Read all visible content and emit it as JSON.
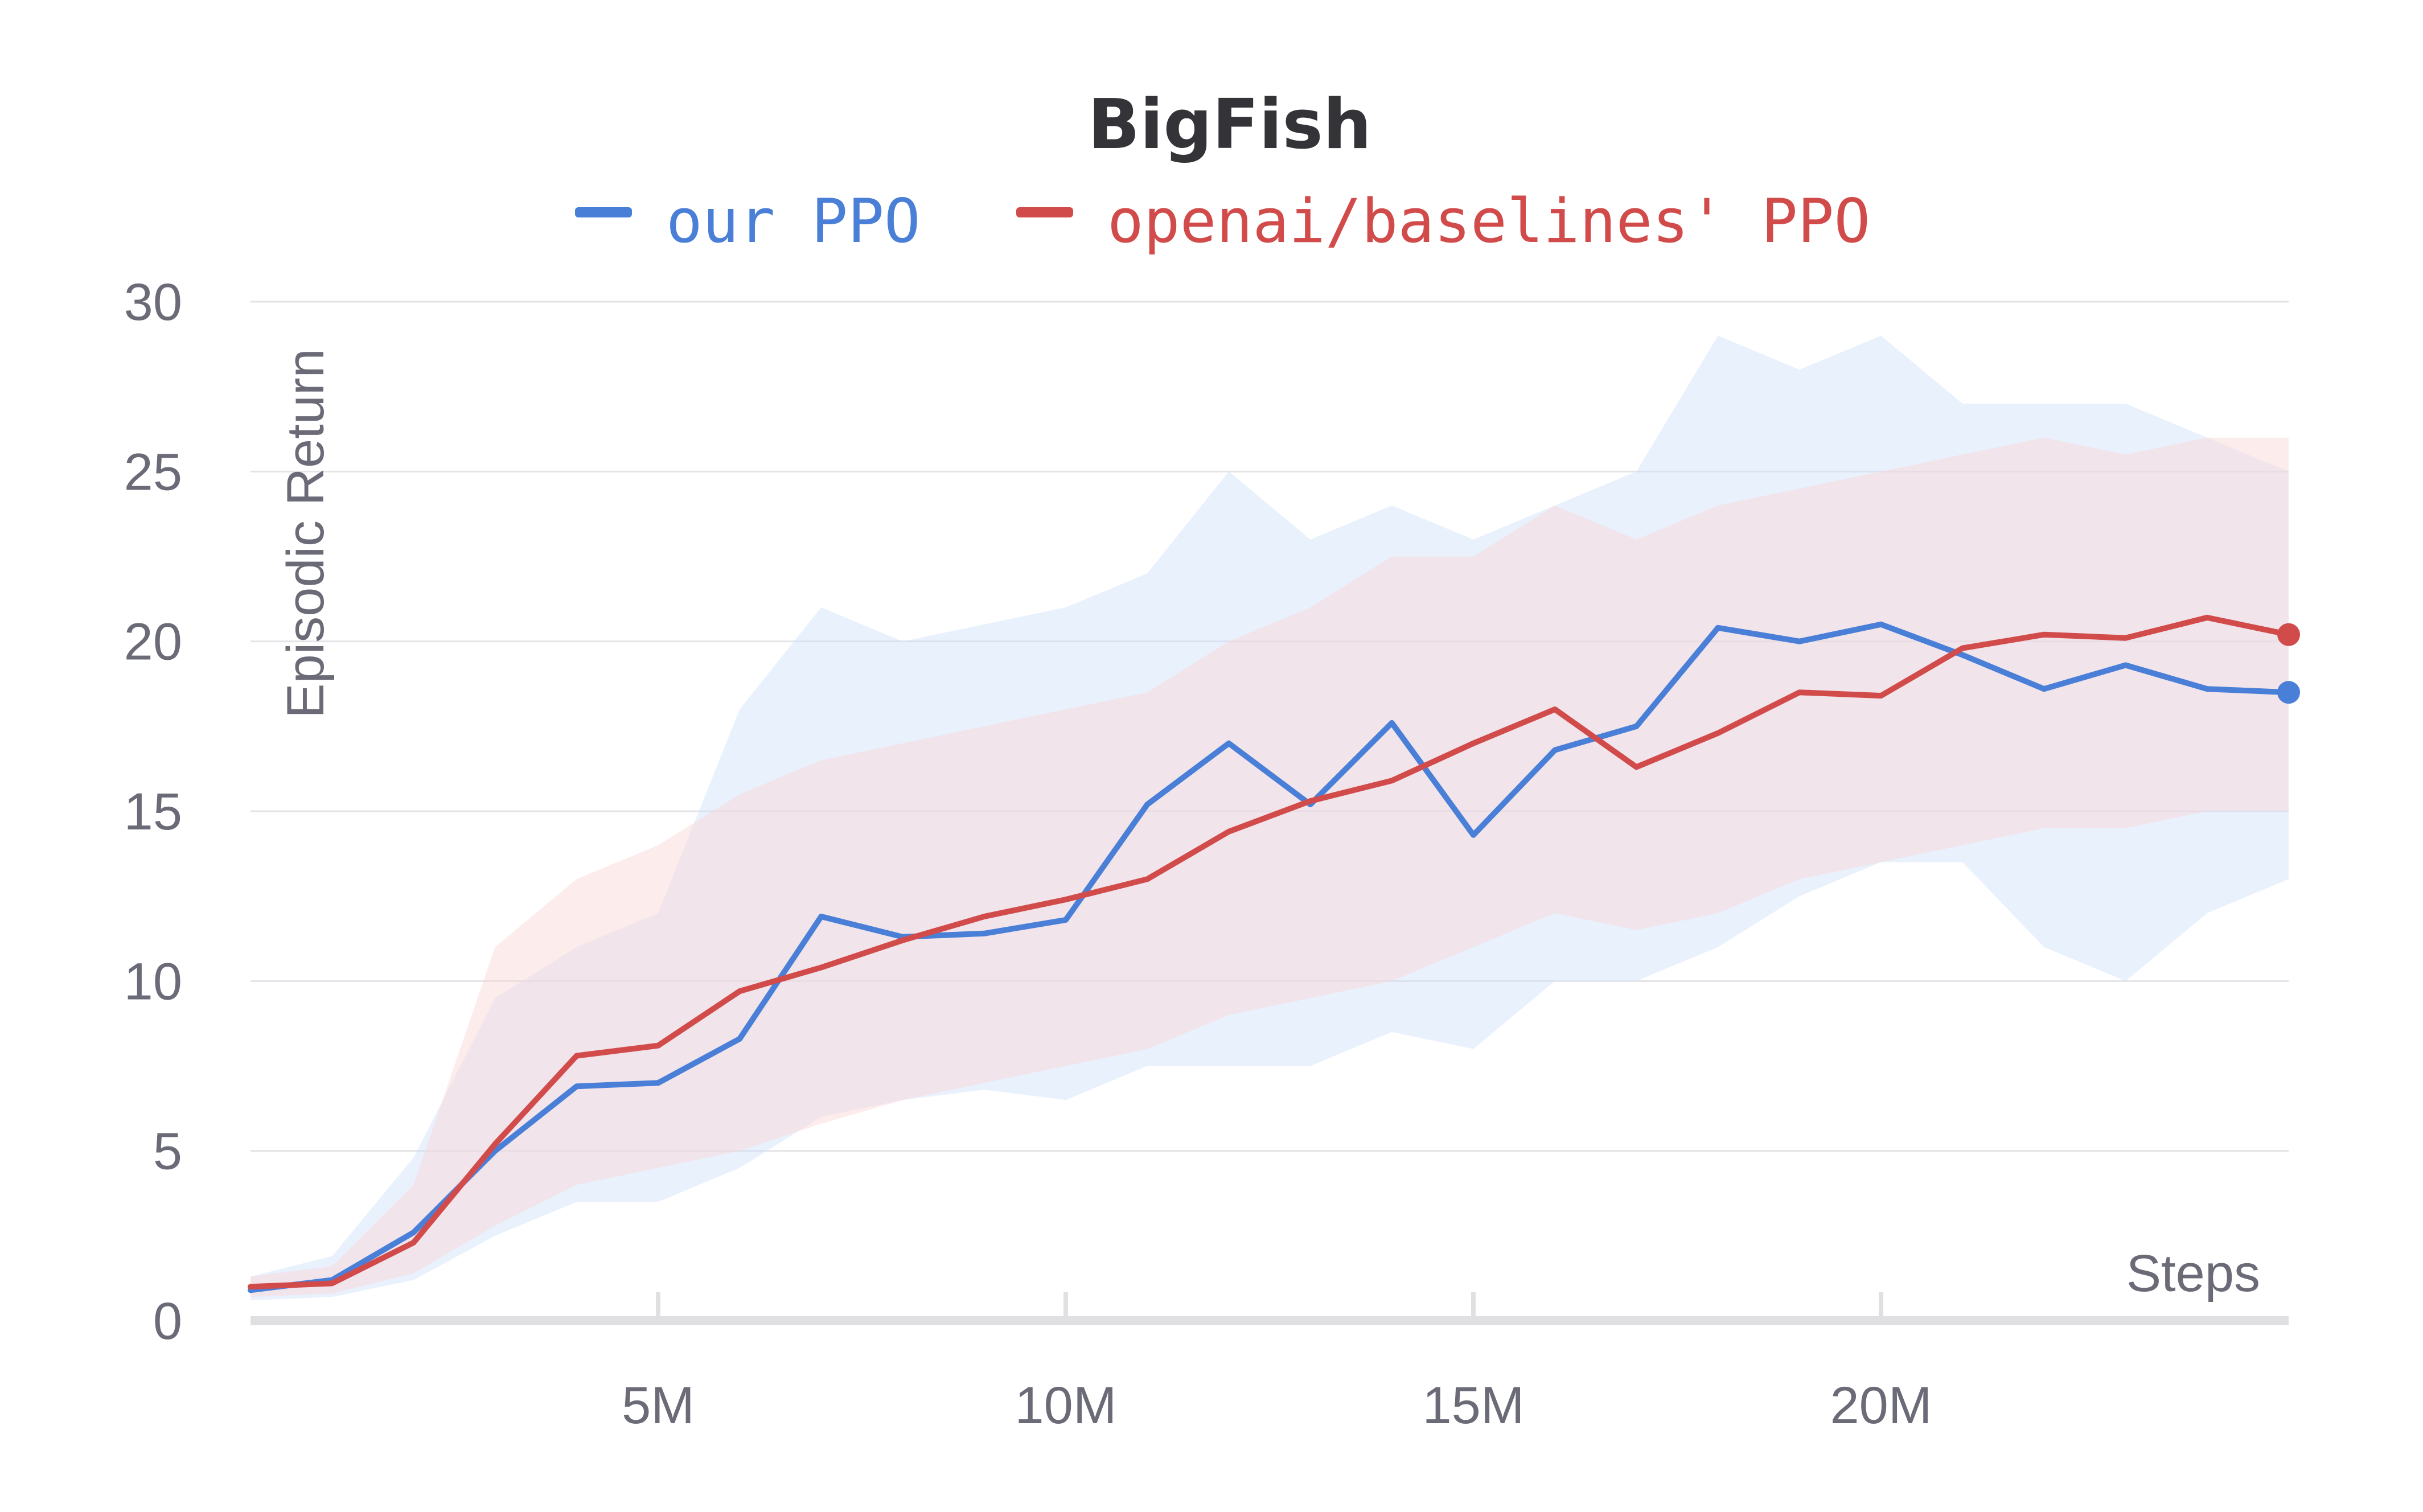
{
  "chart_data": {
    "type": "line",
    "title": "BigFish",
    "xlabel": "Steps",
    "ylabel": "Episodic Return",
    "xlim": [
      0,
      25000000
    ],
    "ylim": [
      0,
      30
    ],
    "x_ticks": [
      {
        "value": 5000000,
        "label": "5M"
      },
      {
        "value": 10000000,
        "label": "10M"
      },
      {
        "value": 15000000,
        "label": "15M"
      },
      {
        "value": 20000000,
        "label": "20M"
      }
    ],
    "y_ticks": [
      {
        "value": 0,
        "label": "0"
      },
      {
        "value": 5,
        "label": "5"
      },
      {
        "value": 10,
        "label": "10"
      },
      {
        "value": 15,
        "label": "15"
      },
      {
        "value": 20,
        "label": "20"
      },
      {
        "value": 25,
        "label": "25"
      },
      {
        "value": 30,
        "label": "30"
      }
    ],
    "grid": true,
    "legend_position": "top-center",
    "x": [
      0,
      1000000,
      2000000,
      3000000,
      4000000,
      5000000,
      6000000,
      7000000,
      8000000,
      9000000,
      10000000,
      11000000,
      12000000,
      13000000,
      14000000,
      15000000,
      16000000,
      17000000,
      18000000,
      19000000,
      20000000,
      21000000,
      22000000,
      23000000,
      24000000,
      25000000
    ],
    "series": [
      {
        "name": "our PPO",
        "color": "#4a7fd8",
        "band_color": "#cfe0fb",
        "values": [
          0.9,
          1.2,
          2.6,
          5.0,
          6.9,
          7.0,
          8.3,
          11.9,
          11.3,
          11.4,
          11.8,
          15.2,
          17.0,
          15.2,
          17.6,
          14.3,
          16.8,
          17.5,
          20.4,
          20.0,
          20.5,
          19.6,
          18.6,
          19.3,
          18.6,
          18.5
        ],
        "upper": [
          1.3,
          1.9,
          4.8,
          9.5,
          11.0,
          12.0,
          18.0,
          21.0,
          20.0,
          20.5,
          21.0,
          22.0,
          25.0,
          23.0,
          24.0,
          23.0,
          24.0,
          25.0,
          29.0,
          28.0,
          29.0,
          27.0,
          27.0,
          27.0,
          26.0,
          25.0
        ],
        "lower": [
          0.6,
          0.7,
          1.2,
          2.5,
          3.5,
          3.5,
          4.5,
          6.0,
          6.5,
          6.8,
          6.5,
          7.5,
          7.5,
          7.5,
          8.5,
          8.0,
          10.0,
          10.0,
          11.0,
          12.5,
          13.5,
          13.5,
          11.0,
          10.0,
          12.0,
          13.0
        ]
      },
      {
        "name": "openai/baselines' PPO",
        "color": "#d24b4b",
        "band_color": "#fbd5d5",
        "values": [
          1.0,
          1.1,
          2.3,
          5.2,
          7.8,
          8.1,
          9.7,
          10.4,
          11.2,
          11.9,
          12.4,
          13.0,
          14.4,
          15.3,
          15.9,
          17.0,
          18.0,
          16.3,
          17.3,
          18.5,
          18.4,
          19.8,
          20.2,
          20.1,
          20.7,
          20.2
        ],
        "upper": [
          1.3,
          1.6,
          4.0,
          11.0,
          13.0,
          14.0,
          15.5,
          16.5,
          17.0,
          17.5,
          18.0,
          18.5,
          20.0,
          21.0,
          22.5,
          22.5,
          24.0,
          23.0,
          24.0,
          24.5,
          25.0,
          25.5,
          26.0,
          25.5,
          26.0,
          26.0
        ],
        "lower": [
          0.7,
          0.8,
          1.4,
          2.8,
          4.0,
          4.5,
          5.0,
          5.8,
          6.5,
          7.0,
          7.5,
          8.0,
          9.0,
          9.5,
          10.0,
          11.0,
          12.0,
          11.5,
          12.0,
          13.0,
          13.5,
          14.0,
          14.5,
          14.5,
          15.0,
          15.0
        ]
      }
    ]
  }
}
